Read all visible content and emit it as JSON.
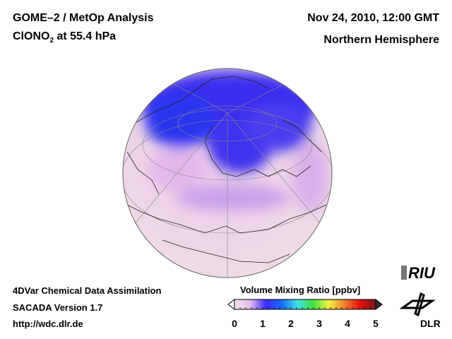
{
  "header": {
    "title_line1": "GOME–2 / MetOp Analysis",
    "species": "ClONO",
    "species_sub": "2",
    "level": " at 55.4 hPa",
    "datetime": "Nov 24, 2010, 12:00 GMT",
    "region": "Northern Hemisphere"
  },
  "footer": {
    "line1": "4DVar Chemical Data Assimilation",
    "line2": "SACADA Version 1.7",
    "line3": "http://wdc.dlr.de"
  },
  "colorbar": {
    "title": "Volume Mixing Ratio [ppbv]",
    "ticks": [
      "0",
      "1",
      "2",
      "3",
      "4",
      "5"
    ],
    "range": [
      0,
      5
    ],
    "colors": [
      "#f4e8ee",
      "#e6b8e6",
      "#3b2cff",
      "#1a6aff",
      "#3de0e6",
      "#40e040",
      "#f0f040",
      "#f08030",
      "#e81010",
      "#701818"
    ]
  },
  "logos": {
    "riu": "RIU",
    "dlr": "DLR"
  }
}
